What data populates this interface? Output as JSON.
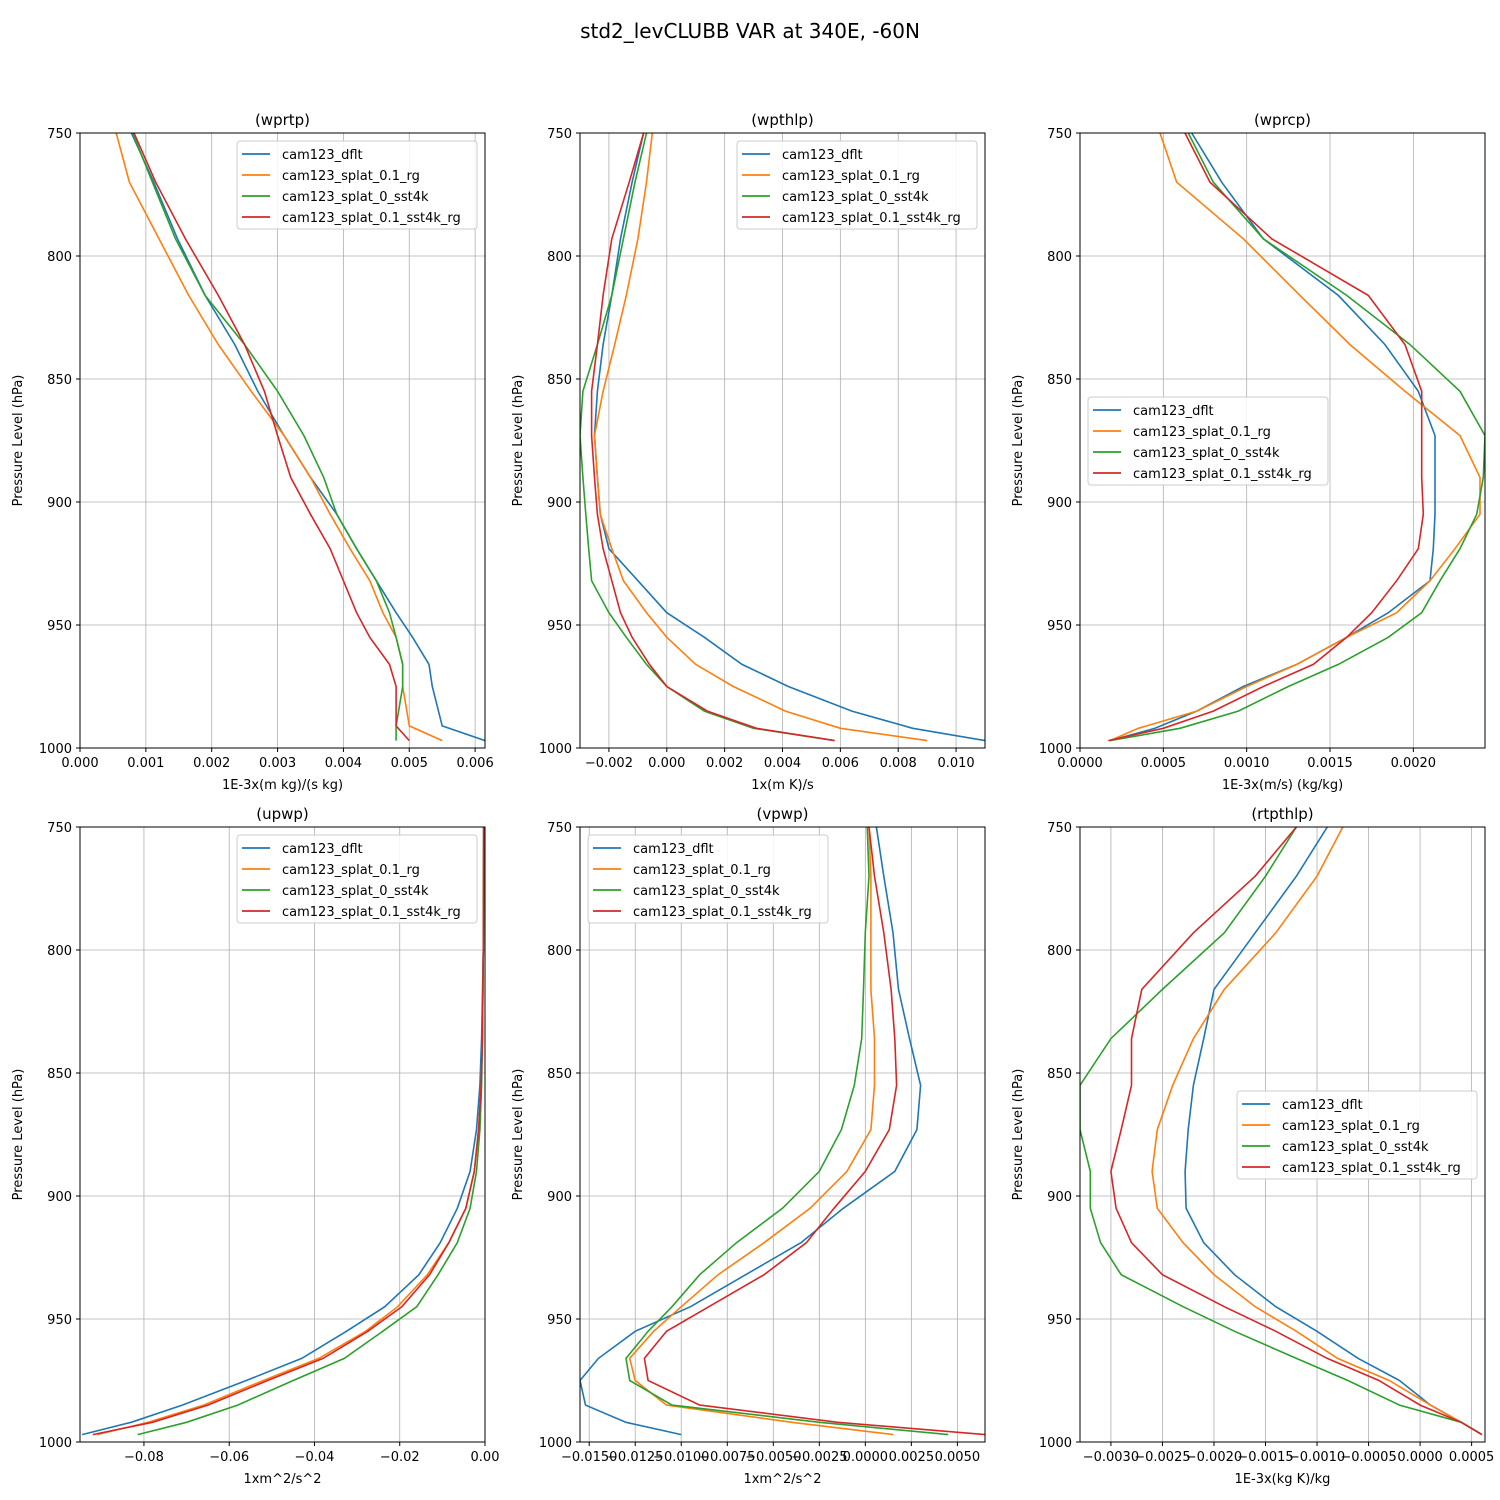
{
  "figure": {
    "suptitle": "std2_levCLUBB VAR at 340E, -60N"
  },
  "colors": {
    "cam123_dflt": "#1f77b4",
    "cam123_splat_0.1_rg": "#ff7f0e",
    "cam123_splat_0_sst4k": "#2ca02c",
    "cam123_splat_0.1_sst4k_rg": "#d62728"
  },
  "chart_data": [
    {
      "type": "line",
      "title": "(wprtp)",
      "xlabel": "1E-3x(m kg)/(s kg)",
      "ylabel": "Pressure Level (hPa)",
      "xlim": [
        0,
        0.00615
      ],
      "ylim": [
        1000,
        750
      ],
      "xticks": [
        0,
        0.001,
        0.002,
        0.003,
        0.004,
        0.005,
        0.006
      ],
      "xticklabels": [
        "0.000",
        "0.001",
        "0.002",
        "0.003",
        "0.004",
        "0.005",
        "0.006"
      ],
      "yticks": [
        750,
        800,
        850,
        900,
        950,
        1000
      ],
      "yticklabels": [
        "750",
        "800",
        "850",
        "900",
        "950",
        "1000"
      ],
      "legend": "top-right",
      "y": [
        750,
        770,
        793,
        816,
        836,
        855,
        873,
        890,
        905,
        919,
        932,
        945,
        955,
        966,
        975,
        991,
        997
      ],
      "series": [
        {
          "name": "cam123_dflt",
          "values": [
            0.00078,
            0.00112,
            0.00148,
            0.0019,
            0.00235,
            0.0027,
            0.0031,
            0.0035,
            0.0039,
            0.0042,
            0.0045,
            0.0048,
            0.00505,
            0.0053,
            0.00535,
            0.0055,
            0.00615
          ]
        },
        {
          "name": "cam123_splat_0.1_rg",
          "values": [
            0.00055,
            0.00075,
            0.0012,
            0.00165,
            0.0021,
            0.0026,
            0.0031,
            0.0035,
            0.0038,
            0.0041,
            0.0044,
            0.0046,
            0.0048,
            0.0049,
            0.0049,
            0.005,
            0.0055
          ]
        },
        {
          "name": "cam123_splat_0_sst4k",
          "values": [
            0.0008,
            0.0011,
            0.00145,
            0.0019,
            0.0025,
            0.003,
            0.0034,
            0.0037,
            0.0039,
            0.0042,
            0.0045,
            0.0047,
            0.0048,
            0.0049,
            0.0049,
            0.0048,
            0.0048
          ]
        },
        {
          "name": "cam123_splat_0.1_sst4k_rg",
          "values": [
            0.00082,
            0.00115,
            0.0016,
            0.0021,
            0.0025,
            0.0028,
            0.003,
            0.0032,
            0.0035,
            0.0038,
            0.004,
            0.0042,
            0.0044,
            0.0047,
            0.0048,
            0.0048,
            0.005
          ]
        }
      ]
    },
    {
      "type": "line",
      "title": "(wpthlp)",
      "xlabel": "1x(m K)/s",
      "ylabel": "Pressure Level (hPa)",
      "xlim": [
        -0.003,
        0.011
      ],
      "ylim": [
        1000,
        750
      ],
      "xticks": [
        -0.002,
        0,
        0.002,
        0.004,
        0.006,
        0.008,
        0.01
      ],
      "xticklabels": [
        "−0.002",
        "0.000",
        "0.002",
        "0.004",
        "0.006",
        "0.008",
        "0.010"
      ],
      "yticks": [
        750,
        800,
        850,
        900,
        950,
        1000
      ],
      "yticklabels": [
        "750",
        "800",
        "850",
        "900",
        "950",
        "1000"
      ],
      "legend": "top-right",
      "y": [
        750,
        770,
        793,
        816,
        836,
        855,
        873,
        890,
        905,
        919,
        932,
        945,
        955,
        966,
        975,
        985,
        992,
        997
      ],
      "series": [
        {
          "name": "cam123_dflt",
          "values": [
            -0.0008,
            -0.0012,
            -0.0016,
            -0.0019,
            -0.0022,
            -0.0024,
            -0.0025,
            -0.0024,
            -0.0023,
            -0.002,
            -0.001,
            0.0,
            0.0013,
            0.0026,
            0.0042,
            0.0064,
            0.0085,
            0.011
          ]
        },
        {
          "name": "cam123_splat_0.1_rg",
          "values": [
            -0.0005,
            -0.0007,
            -0.001,
            -0.0014,
            -0.0018,
            -0.0022,
            -0.0025,
            -0.0024,
            -0.0023,
            -0.0019,
            -0.0015,
            -0.0007,
            0.0,
            0.001,
            0.0023,
            0.0041,
            0.006,
            0.009
          ]
        },
        {
          "name": "cam123_splat_0_sst4k",
          "values": [
            -0.0007,
            -0.0011,
            -0.0015,
            -0.0019,
            -0.0024,
            -0.0029,
            -0.003,
            -0.0029,
            -0.0028,
            -0.0027,
            -0.0026,
            -0.002,
            -0.0014,
            -0.0007,
            0.0,
            0.0013,
            0.003,
            0.0058
          ]
        },
        {
          "name": "cam123_splat_0.1_sst4k_rg",
          "values": [
            -0.0008,
            -0.0013,
            -0.0019,
            -0.0022,
            -0.0024,
            -0.0026,
            -0.0026,
            -0.0025,
            -0.0024,
            -0.0022,
            -0.0019,
            -0.0016,
            -0.0012,
            -0.0006,
            0.0,
            0.0014,
            0.0031,
            0.0058
          ]
        }
      ]
    },
    {
      "type": "line",
      "title": "(wprcp)",
      "xlabel": "1E-3x(m/s) (kg/kg)",
      "ylabel": "Pressure Level (hPa)",
      "xlim": [
        0,
        0.00243
      ],
      "ylim": [
        1000,
        750
      ],
      "xticks": [
        0,
        0.0005,
        0.001,
        0.0015,
        0.002
      ],
      "xticklabels": [
        "0.0000",
        "0.0005",
        "0.0010",
        "0.0015",
        "0.0020"
      ],
      "yticks": [
        750,
        800,
        850,
        900,
        950,
        1000
      ],
      "yticklabels": [
        "750",
        "800",
        "850",
        "900",
        "950",
        "1000"
      ],
      "legend": "center-left",
      "y": [
        750,
        770,
        793,
        816,
        836,
        855,
        873,
        890,
        905,
        919,
        932,
        945,
        955,
        966,
        975,
        985,
        992,
        997
      ],
      "series": [
        {
          "name": "cam123_dflt",
          "values": [
            0.00067,
            0.00085,
            0.0011,
            0.00155,
            0.00183,
            0.00203,
            0.00213,
            0.00213,
            0.00213,
            0.00212,
            0.0021,
            0.00185,
            0.0016,
            0.0013,
            0.00098,
            0.0007,
            0.00045,
            0.00018
          ]
        },
        {
          "name": "cam123_splat_0.1_rg",
          "values": [
            0.00048,
            0.00058,
            0.00098,
            0.00132,
            0.00162,
            0.00195,
            0.00228,
            0.0024,
            0.0024,
            0.00225,
            0.0021,
            0.0019,
            0.0016,
            0.0013,
            0.001,
            0.0007,
            0.00035,
            0.00018
          ]
        },
        {
          "name": "cam123_splat_0_sst4k",
          "values": [
            0.00065,
            0.0008,
            0.0011,
            0.0016,
            0.00198,
            0.00228,
            0.00243,
            0.00242,
            0.00238,
            0.00228,
            0.00216,
            0.00205,
            0.00185,
            0.00155,
            0.00125,
            0.00095,
            0.0006,
            0.00018
          ]
        },
        {
          "name": "cam123_splat_0.1_sst4k_rg",
          "values": [
            0.00063,
            0.00078,
            0.00115,
            0.00173,
            0.00195,
            0.00205,
            0.00205,
            0.00205,
            0.00206,
            0.00203,
            0.0019,
            0.00175,
            0.0016,
            0.0014,
            0.0011,
            0.0008,
            0.0005,
            0.00017
          ]
        }
      ]
    },
    {
      "type": "line",
      "title": "(upwp)",
      "xlabel": "1xm^2/s^2",
      "ylabel": "Pressure Level (hPa)",
      "xlim": [
        -0.095,
        0.0
      ],
      "ylim": [
        1000,
        750
      ],
      "xticks": [
        -0.08,
        -0.06,
        -0.04,
        -0.02,
        0.0
      ],
      "xticklabels": [
        "−0.08",
        "−0.06",
        "−0.04",
        "−0.02",
        "0.00"
      ],
      "yticks": [
        750,
        800,
        850,
        900,
        950,
        1000
      ],
      "yticklabels": [
        "750",
        "800",
        "850",
        "900",
        "950",
        "1000"
      ],
      "legend": "top-right",
      "y": [
        750,
        800,
        836,
        855,
        873,
        890,
        905,
        919,
        932,
        945,
        955,
        966,
        975,
        985,
        992,
        997
      ],
      "series": [
        {
          "name": "cam123_dflt",
          "values": [
            -0.0003,
            -0.0004,
            -0.0008,
            -0.0012,
            -0.002,
            -0.0035,
            -0.0065,
            -0.0105,
            -0.0155,
            -0.0235,
            -0.0325,
            -0.043,
            -0.056,
            -0.071,
            -0.083,
            -0.0945
          ]
        },
        {
          "name": "cam123_splat_0.1_rg",
          "values": [
            -0.0003,
            -0.0004,
            -0.0006,
            -0.0009,
            -0.0015,
            -0.0025,
            -0.0045,
            -0.0085,
            -0.0135,
            -0.0205,
            -0.028,
            -0.039,
            -0.052,
            -0.066,
            -0.079,
            -0.091
          ]
        },
        {
          "name": "cam123_splat_0_sst4k",
          "values": [
            -0.0003,
            -0.0004,
            -0.0006,
            -0.0008,
            -0.0012,
            -0.002,
            -0.0035,
            -0.0065,
            -0.011,
            -0.016,
            -0.024,
            -0.033,
            -0.045,
            -0.058,
            -0.07,
            -0.0815
          ]
        },
        {
          "name": "cam123_splat_0.1_sst4k_rg",
          "values": [
            -0.0003,
            -0.0004,
            -0.0006,
            -0.0009,
            -0.0015,
            -0.0025,
            -0.0045,
            -0.0085,
            -0.013,
            -0.0195,
            -0.0275,
            -0.038,
            -0.051,
            -0.065,
            -0.078,
            -0.092
          ]
        }
      ]
    },
    {
      "type": "line",
      "title": "(vpwp)",
      "xlabel": "1xm^2/s^2",
      "ylabel": "Pressure Level (hPa)",
      "xlim": [
        -0.0155,
        0.0065
      ],
      "ylim": [
        1000,
        750
      ],
      "xticks": [
        -0.015,
        -0.0125,
        -0.01,
        -0.0075,
        -0.005,
        -0.0025,
        0.0,
        0.0025,
        0.005
      ],
      "xticklabels": [
        "−0.0150",
        "−0.0125",
        "−0.0100",
        "−0.0075",
        "−0.0050",
        "−0.0025",
        "0.0000",
        "0.0025",
        "0.0050"
      ],
      "yticks": [
        750,
        800,
        850,
        900,
        950,
        1000
      ],
      "yticklabels": [
        "750",
        "800",
        "850",
        "900",
        "950",
        "1000"
      ],
      "legend": "top-left",
      "y": [
        750,
        770,
        793,
        816,
        836,
        855,
        873,
        890,
        905,
        919,
        932,
        945,
        955,
        966,
        975,
        985,
        992,
        997
      ],
      "series": [
        {
          "name": "cam123_dflt",
          "values": [
            0.0006,
            0.001,
            0.0015,
            0.0018,
            0.0024,
            0.003,
            0.0028,
            0.0016,
            -0.0012,
            -0.0035,
            -0.0065,
            -0.0095,
            -0.0125,
            -0.0145,
            -0.0155,
            -0.0152,
            -0.013,
            -0.01
          ]
        },
        {
          "name": "cam123_splat_0.1_rg",
          "values": [
            0.0002,
            0.0003,
            0.0003,
            0.0003,
            0.0005,
            0.0005,
            0.0003,
            -0.001,
            -0.003,
            -0.0055,
            -0.008,
            -0.01,
            -0.0115,
            -0.0128,
            -0.0125,
            -0.0108,
            -0.004,
            0.0015
          ]
        },
        {
          "name": "cam123_splat_0_sst4k",
          "values": [
            0.0001,
            0.0002,
            0.0,
            -0.0001,
            -0.0002,
            -0.0006,
            -0.0013,
            -0.0025,
            -0.0045,
            -0.007,
            -0.009,
            -0.0105,
            -0.0118,
            -0.013,
            -0.0128,
            -0.0105,
            -0.0025,
            0.0045
          ]
        },
        {
          "name": "cam123_splat_0.1_sst4k_rg",
          "values": [
            0.0002,
            0.0005,
            0.001,
            0.0014,
            0.0016,
            0.0017,
            0.0013,
            0.0,
            -0.0017,
            -0.0032,
            -0.0055,
            -0.0085,
            -0.0108,
            -0.012,
            -0.0118,
            -0.009,
            -0.0015,
            0.0065
          ]
        }
      ]
    },
    {
      "type": "line",
      "title": "(rtpthlp)",
      "xlabel": "1E-3x(kg K)/kg",
      "ylabel": "Pressure Level (hPa)",
      "xlim": [
        -0.0033,
        0.00063
      ],
      "ylim": [
        1000,
        750
      ],
      "xticks": [
        -0.003,
        -0.0025,
        -0.002,
        -0.0015,
        -0.001,
        -0.0005,
        0.0,
        0.0005
      ],
      "xticklabels": [
        "−0.0030",
        "−0.0025",
        "−0.0020",
        "−0.0015",
        "−0.0010",
        "−0.0005",
        "0.0000",
        "0.0005"
      ],
      "yticks": [
        750,
        800,
        850,
        900,
        950,
        1000
      ],
      "yticklabels": [
        "750",
        "800",
        "850",
        "900",
        "950",
        "1000"
      ],
      "legend": "center-right",
      "y": [
        750,
        770,
        793,
        816,
        836,
        855,
        873,
        890,
        905,
        919,
        932,
        945,
        955,
        966,
        975,
        985,
        992,
        997
      ],
      "series": [
        {
          "name": "cam123_dflt",
          "values": [
            -0.0009,
            -0.0012,
            -0.0016,
            -0.002,
            -0.0021,
            -0.0022,
            -0.00225,
            -0.00228,
            -0.00227,
            -0.0021,
            -0.0018,
            -0.0014,
            -0.001,
            -0.0006,
            -0.0002,
            0.0001,
            0.0004,
            0.0006
          ]
        },
        {
          "name": "cam123_splat_0.1_rg",
          "values": [
            -0.00075,
            -0.001,
            -0.0014,
            -0.0019,
            -0.0022,
            -0.0024,
            -0.00255,
            -0.0026,
            -0.00255,
            -0.0023,
            -0.002,
            -0.0016,
            -0.0012,
            -0.0008,
            -0.0003,
            0.0001,
            0.0004,
            0.0006
          ]
        },
        {
          "name": "cam123_splat_0_sst4k",
          "values": [
            -0.0012,
            -0.0015,
            -0.0019,
            -0.0025,
            -0.003,
            -0.0033,
            -0.0033,
            -0.0032,
            -0.0032,
            -0.0031,
            -0.0029,
            -0.0023,
            -0.0018,
            -0.0012,
            -0.0007,
            -0.0002,
            0.0004,
            0.0006
          ]
        },
        {
          "name": "cam123_splat_0.1_sst4k_rg",
          "values": [
            -0.0012,
            -0.0016,
            -0.0022,
            -0.0027,
            -0.0028,
            -0.0028,
            -0.0029,
            -0.003,
            -0.00295,
            -0.0028,
            -0.0025,
            -0.0019,
            -0.0014,
            -0.0009,
            -0.0004,
            0.0,
            0.0004,
            0.0006
          ]
        }
      ]
    }
  ]
}
